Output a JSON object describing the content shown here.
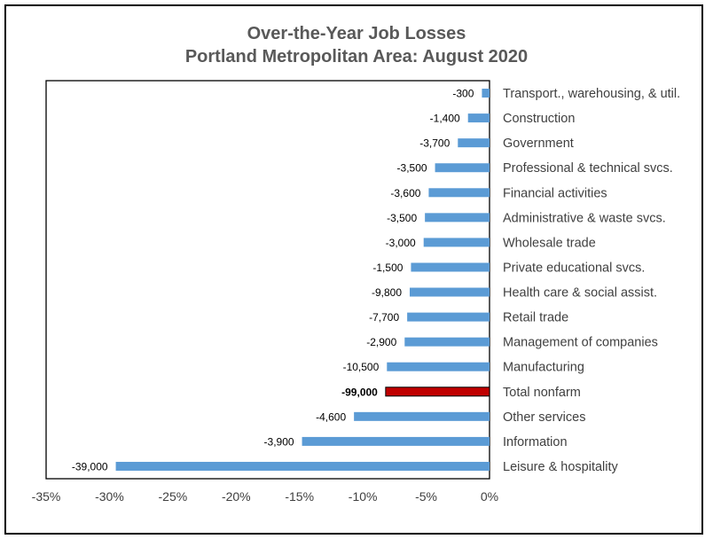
{
  "chart_data": {
    "type": "bar",
    "orientation": "horizontal",
    "title": "Over-the-Year Job Losses",
    "subtitle": "Portland Metropolitan Area: August 2020",
    "xlim": [
      -35,
      0
    ],
    "x_unit": "%",
    "x_ticks": [
      "-35%",
      "-30%",
      "-25%",
      "-20%",
      "-15%",
      "-10%",
      "-5%",
      "0%"
    ],
    "x_tick_values": [
      -35,
      -30,
      -25,
      -20,
      -15,
      -10,
      -5,
      0
    ],
    "grid": false,
    "colors": {
      "default": "#5b9bd5",
      "highlight": "#c00000"
    },
    "categories": [
      "Transport., warehousing, & util.",
      "Construction",
      "Government",
      "Professional & technical svcs.",
      "Financial activities",
      "Administrative & waste svcs.",
      "Wholesale trade",
      "Private educational svcs.",
      "Health care & social assist.",
      "Retail trade",
      "Management of companies",
      "Manufacturing",
      "Total nonfarm",
      "Other services",
      "Information",
      "Leisure & hospitality"
    ],
    "values": [
      -0.6,
      -1.7,
      -2.5,
      -4.3,
      -4.8,
      -5.1,
      -5.2,
      -6.2,
      -6.3,
      -6.5,
      -6.7,
      -8.1,
      -8.2,
      -10.7,
      -14.8,
      -29.5
    ],
    "data_labels": [
      "-300",
      "-1,400",
      "-3,700",
      "-3,500",
      "-3,600",
      "-3,500",
      "-3,000",
      "-1,500",
      "-9,800",
      "-7,700",
      "-2,900",
      "-10,500",
      "-99,000",
      "-4,600",
      "-3,900",
      "-39,000"
    ],
    "highlight": [
      false,
      false,
      false,
      false,
      false,
      false,
      false,
      false,
      false,
      false,
      false,
      false,
      true,
      false,
      false,
      false
    ]
  }
}
